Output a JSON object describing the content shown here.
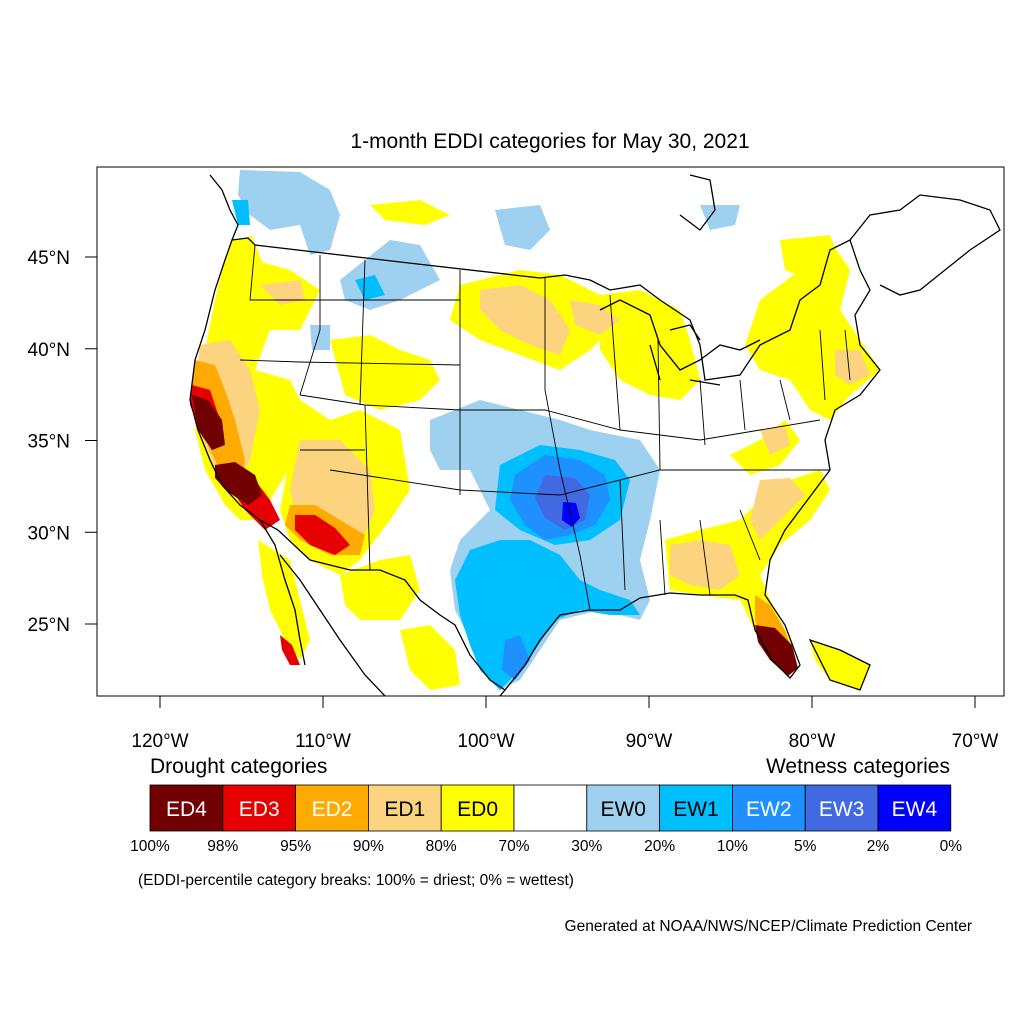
{
  "title": "1-month EDDI categories for May 30, 2021",
  "lat_labels": [
    "45°N",
    "40°N",
    "35°N",
    "30°N",
    "25°N"
  ],
  "lat_values": [
    45,
    40,
    35,
    30,
    25
  ],
  "lon_labels": [
    "120°W",
    "110°W",
    "100°W",
    "90°W",
    "80°W",
    "70°W"
  ],
  "lon_values": [
    -120,
    -110,
    -100,
    -90,
    -80,
    -70
  ],
  "drought_label": "Drought categories",
  "wetness_label": "Wetness categories",
  "legend": {
    "categories": [
      {
        "label": "ED4",
        "color": "#730000",
        "text_color": "#ffffff"
      },
      {
        "label": "ED3",
        "color": "#e60000",
        "text_color": "#ffffff"
      },
      {
        "label": "ED2",
        "color": "#ffaa00",
        "text_color": "#ffffff"
      },
      {
        "label": "ED1",
        "color": "#fcd37f",
        "text_color": "#000000"
      },
      {
        "label": "ED0",
        "color": "#ffff00",
        "text_color": "#000000"
      },
      {
        "label": "",
        "color": "#ffffff",
        "text_color": "#000000"
      },
      {
        "label": "EW0",
        "color": "#9dd1ef",
        "text_color": "#000000"
      },
      {
        "label": "EW1",
        "color": "#00bfff",
        "text_color": "#000000"
      },
      {
        "label": "EW2",
        "color": "#1e90ff",
        "text_color": "#ffffff"
      },
      {
        "label": "EW3",
        "color": "#4169e1",
        "text_color": "#ffffff"
      },
      {
        "label": "EW4",
        "color": "#0000ff",
        "text_color": "#ffffff"
      }
    ],
    "breaks": [
      "100%",
      "98%",
      "95%",
      "90%",
      "80%",
      "70%",
      "30%",
      "20%",
      "10%",
      "5%",
      "2%",
      "0%"
    ]
  },
  "note": "(EDDI-percentile category breaks: 100% = driest; 0% = wettest)",
  "credit": "Generated at NOAA/NWS/NCEP/Climate Prediction Center"
}
